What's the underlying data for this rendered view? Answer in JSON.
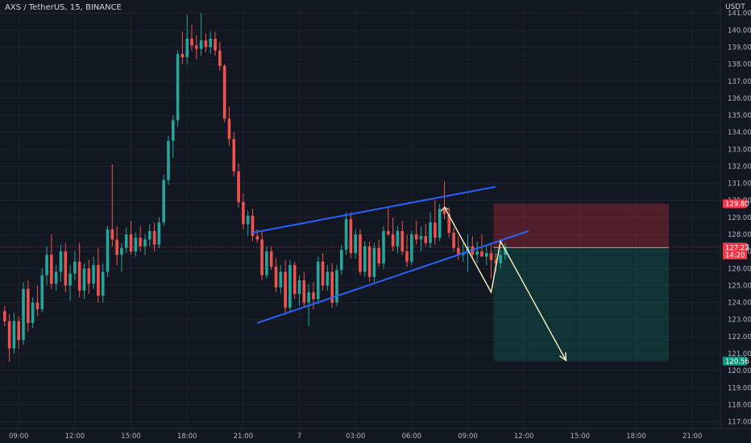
{
  "header": {
    "symbol_title": "AXS / TetherUS, 15, BINANCE"
  },
  "price_axis": {
    "unit": "USDT"
  },
  "chart_data": {
    "type": "candlestick",
    "title": "AXS / TetherUS, 15, BINANCE",
    "y_unit": "USDT",
    "ylim": [
      116.6,
      141.2
    ],
    "y_ticks": [
      117,
      118,
      119,
      120,
      121,
      122,
      123,
      124,
      125,
      126,
      127,
      128,
      129,
      130,
      131,
      132,
      133,
      134,
      135,
      136,
      137,
      138,
      139,
      140,
      141
    ],
    "y_tick_labels": [
      "117.00",
      "118.00",
      "119.00",
      "120.00",
      "121.00",
      "122.00",
      "123.00",
      "124.00",
      "125.00",
      "126.00",
      "127.00",
      "128.00",
      "129.00",
      "130.00",
      "131.00",
      "132.00",
      "133.00",
      "134.00",
      "135.00",
      "136.00",
      "137.00",
      "138.00",
      "139.00",
      "140.00",
      "141.00"
    ],
    "x_ticks": [
      {
        "label": "09:00",
        "t": 3
      },
      {
        "label": "12:00",
        "t": 15
      },
      {
        "label": "15:00",
        "t": 27
      },
      {
        "label": "18:00",
        "t": 39
      },
      {
        "label": "21:00",
        "t": 51
      },
      {
        "label": "7",
        "t": 63
      },
      {
        "label": "03:00",
        "t": 75
      },
      {
        "label": "06:00",
        "t": 87
      },
      {
        "label": "09:00",
        "t": 99
      },
      {
        "label": "12:00",
        "t": 111
      },
      {
        "label": "15:00",
        "t": 123
      },
      {
        "label": "18:00",
        "t": 135
      },
      {
        "label": "21:00",
        "t": 147
      }
    ],
    "candles": [
      [
        0,
        123.5,
        123.8,
        122.6,
        122.9
      ],
      [
        1,
        122.9,
        123.3,
        120.5,
        121.3
      ],
      [
        2,
        121.3,
        123.4,
        121.0,
        122.9
      ],
      [
        3,
        122.9,
        123.2,
        121.3,
        121.8
      ],
      [
        4,
        121.8,
        125.2,
        121.5,
        124.8
      ],
      [
        5,
        124.8,
        125.3,
        122.3,
        122.8
      ],
      [
        6,
        122.8,
        124.3,
        122.5,
        124.0
      ],
      [
        7,
        124.0,
        125.0,
        123.2,
        123.6
      ],
      [
        8,
        123.6,
        126.0,
        123.4,
        125.6
      ],
      [
        9,
        125.6,
        127.3,
        125.0,
        126.8
      ],
      [
        10,
        126.8,
        128.0,
        124.8,
        125.1
      ],
      [
        11,
        125.1,
        126.2,
        124.7,
        125.8
      ],
      [
        12,
        125.8,
        127.4,
        125.2,
        127.0
      ],
      [
        13,
        127.0,
        127.5,
        124.6,
        125.0
      ],
      [
        14,
        125.0,
        126.2,
        124.1,
        125.7
      ],
      [
        15,
        125.7,
        127.0,
        125.3,
        126.4
      ],
      [
        16,
        126.4,
        127.5,
        124.3,
        124.7
      ],
      [
        17,
        124.7,
        126.3,
        124.2,
        126.0
      ],
      [
        18,
        126.0,
        126.5,
        124.5,
        125.1
      ],
      [
        19,
        125.1,
        126.7,
        124.8,
        126.2
      ],
      [
        20,
        126.2,
        127.2,
        124.0,
        124.4
      ],
      [
        21,
        124.4,
        126.3,
        124.0,
        125.8
      ],
      [
        22,
        125.8,
        128.5,
        125.5,
        128.3
      ],
      [
        23,
        128.3,
        132.1,
        127.3,
        127.7
      ],
      [
        24,
        127.7,
        128.5,
        126.2,
        126.8
      ],
      [
        25,
        126.8,
        127.5,
        125.8,
        127.2
      ],
      [
        26,
        127.2,
        128.4,
        126.9,
        128.0
      ],
      [
        27,
        128.0,
        128.8,
        126.8,
        127.0
      ],
      [
        28,
        127.0,
        128.1,
        126.7,
        127.8
      ],
      [
        29,
        127.8,
        128.5,
        127.0,
        127.3
      ],
      [
        30,
        127.3,
        128.0,
        126.8,
        127.7
      ],
      [
        31,
        127.7,
        128.6,
        127.3,
        128.2
      ],
      [
        32,
        128.2,
        128.7,
        127.0,
        127.4
      ],
      [
        33,
        127.4,
        129.0,
        127.2,
        128.7
      ],
      [
        34,
        128.7,
        131.5,
        128.5,
        131.2
      ],
      [
        35,
        131.2,
        133.8,
        130.9,
        133.5
      ],
      [
        36,
        133.5,
        135.0,
        132.5,
        134.7
      ],
      [
        37,
        134.7,
        138.8,
        134.3,
        138.6
      ],
      [
        38,
        138.6,
        139.9,
        138.0,
        138.4
      ],
      [
        39,
        138.4,
        140.9,
        138.0,
        139.5
      ],
      [
        40,
        139.5,
        140.3,
        138.8,
        139.1
      ],
      [
        41,
        139.1,
        139.7,
        138.3,
        138.9
      ],
      [
        42,
        138.9,
        141.0,
        138.5,
        139.4
      ],
      [
        43,
        139.4,
        139.8,
        138.7,
        139.0
      ],
      [
        44,
        139.0,
        139.9,
        138.6,
        139.5
      ],
      [
        45,
        139.5,
        139.9,
        138.5,
        138.8
      ],
      [
        46,
        138.8,
        139.3,
        137.6,
        137.9
      ],
      [
        47,
        137.9,
        138.0,
        134.6,
        134.8
      ],
      [
        48,
        134.8,
        135.5,
        133.2,
        133.6
      ],
      [
        49,
        133.6,
        134.0,
        131.4,
        131.7
      ],
      [
        50,
        131.7,
        132.2,
        129.6,
        129.9
      ],
      [
        51,
        129.9,
        130.4,
        128.3,
        128.6
      ],
      [
        52,
        128.6,
        129.4,
        127.9,
        129.1
      ],
      [
        53,
        129.1,
        129.5,
        127.6,
        127.9
      ],
      [
        54,
        127.9,
        128.3,
        127.5,
        127.7
      ],
      [
        55,
        127.7,
        128.2,
        125.3,
        125.6
      ],
      [
        56,
        125.6,
        127.3,
        125.4,
        127.0
      ],
      [
        57,
        127.0,
        127.3,
        125.9,
        126.1
      ],
      [
        58,
        126.1,
        126.6,
        124.6,
        124.9
      ],
      [
        59,
        124.9,
        126.2,
        124.5,
        125.8
      ],
      [
        60,
        125.8,
        126.5,
        123.4,
        123.7
      ],
      [
        61,
        123.7,
        126.5,
        123.5,
        126.2
      ],
      [
        62,
        126.2,
        126.4,
        124.2,
        124.5
      ],
      [
        63,
        124.5,
        125.6,
        123.8,
        125.3
      ],
      [
        64,
        125.3,
        125.8,
        123.7,
        124.0
      ],
      [
        65,
        124.0,
        125.1,
        122.6,
        124.6
      ],
      [
        66,
        124.6,
        125.2,
        123.6,
        124.2
      ],
      [
        67,
        124.2,
        126.7,
        123.9,
        126.4
      ],
      [
        68,
        126.4,
        126.9,
        124.7,
        125.0
      ],
      [
        69,
        125.0,
        126.2,
        124.7,
        125.8
      ],
      [
        70,
        125.8,
        126.3,
        123.7,
        124.0
      ],
      [
        71,
        124.0,
        126.2,
        123.8,
        125.9
      ],
      [
        72,
        125.9,
        127.4,
        125.6,
        127.1
      ],
      [
        73,
        127.1,
        129.3,
        126.8,
        128.9
      ],
      [
        74,
        128.9,
        129.3,
        126.6,
        126.9
      ],
      [
        75,
        126.9,
        128.3,
        126.6,
        128.0
      ],
      [
        76,
        128.0,
        128.3,
        125.6,
        125.8
      ],
      [
        77,
        125.8,
        127.6,
        125.5,
        127.3
      ],
      [
        78,
        127.3,
        127.6,
        125.2,
        125.5
      ],
      [
        79,
        125.5,
        127.5,
        125.2,
        127.2
      ],
      [
        80,
        127.2,
        127.7,
        126.1,
        126.3
      ],
      [
        81,
        126.3,
        128.5,
        126.0,
        128.2
      ],
      [
        82,
        128.2,
        129.6,
        127.9,
        128.0
      ],
      [
        83,
        128.0,
        129.0,
        127.0,
        127.3
      ],
      [
        84,
        127.3,
        128.5,
        126.9,
        128.2
      ],
      [
        85,
        128.2,
        128.8,
        126.8,
        127.0
      ],
      [
        86,
        127.0,
        128.0,
        126.1,
        126.4
      ],
      [
        87,
        126.4,
        128.2,
        126.2,
        128.0
      ],
      [
        88,
        128.0,
        128.8,
        127.4,
        127.7
      ],
      [
        89,
        127.7,
        128.5,
        127.0,
        127.9
      ],
      [
        90,
        127.9,
        128.6,
        127.3,
        127.5
      ],
      [
        91,
        127.5,
        129.3,
        127.2,
        128.7
      ],
      [
        92,
        128.7,
        130.0,
        127.4,
        127.8
      ],
      [
        93,
        127.8,
        129.8,
        127.6,
        129.5
      ],
      [
        94,
        129.5,
        131.1,
        128.9,
        129.2
      ],
      [
        95,
        129.2,
        129.6,
        127.8,
        128.1
      ],
      [
        96,
        128.1,
        128.4,
        127.0,
        127.2
      ],
      [
        97,
        127.2,
        127.9,
        126.5,
        126.8
      ],
      [
        98,
        126.8,
        127.5,
        126.4,
        126.9
      ],
      [
        99,
        126.9,
        128.0,
        125.8,
        127.3
      ],
      [
        100,
        127.3,
        127.9,
        126.6,
        126.8
      ],
      [
        101,
        126.8,
        127.6,
        126.3,
        127.0
      ],
      [
        102,
        127.0,
        128.0,
        126.7,
        126.7
      ],
      [
        103,
        126.7,
        127.3,
        126.2,
        126.9
      ],
      [
        104,
        126.9,
        127.4,
        125.4,
        126.5
      ],
      [
        105,
        126.5,
        126.9,
        125.8,
        126.3
      ],
      [
        106,
        126.3,
        127.1,
        126.0,
        126.8
      ],
      [
        107,
        126.8,
        127.5,
        126.5,
        127.3
      ]
    ],
    "series_colors": {
      "up": "#26a69a",
      "down": "#ef5350"
    },
    "channel_lines": [
      {
        "color": "#2962ff",
        "from": [
          53,
          128.1
        ],
        "to": [
          105,
          130.8
        ]
      },
      {
        "color": "#2962ff",
        "from": [
          54,
          122.8
        ],
        "to": [
          112,
          128.2
        ]
      }
    ],
    "projection_path": {
      "color": "#fff3c4",
      "points": [
        [
          94,
          129.6
        ],
        [
          104,
          124.6
        ],
        [
          106,
          127.6
        ],
        [
          120,
          120.6
        ]
      ]
    },
    "position": {
      "entry": 127.22,
      "stop": 129.8,
      "target": 120.56,
      "t_start": 104.5,
      "t_end": 142,
      "risk_color": "#f23645",
      "reward_color": "#089981"
    },
    "price_labels": [
      {
        "text": "129.80",
        "value": 129.8,
        "bg": "#f23645"
      },
      {
        "text": "127.26",
        "value": 127.26,
        "bg": "#5d606b"
      },
      {
        "text": "127.22",
        "value": 127.22,
        "bg": "#f23645",
        "sub": "14:20"
      },
      {
        "text": "120.56",
        "value": 120.56,
        "bg": "#089981"
      }
    ],
    "grid": true
  }
}
